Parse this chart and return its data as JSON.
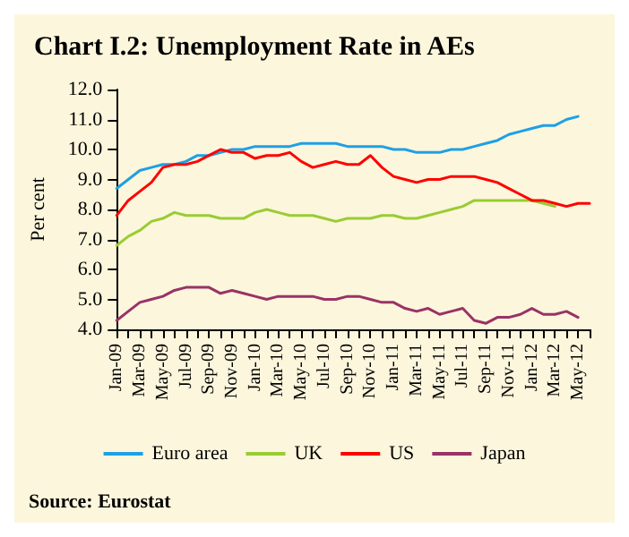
{
  "chart_data": {
    "type": "line",
    "title": "Chart I.2: Unemployment Rate in AEs",
    "ylabel": "Per cent",
    "categories": [
      "Jan-09",
      null,
      "Mar-09",
      null,
      "May-09",
      null,
      "Jul-09",
      null,
      "Sep-09",
      null,
      "Nov-09",
      null,
      "Jan-10",
      null,
      "Mar-10",
      null,
      "May-10",
      null,
      "Jul-10",
      null,
      "Sep-10",
      null,
      "Nov-10",
      null,
      "Jan-11",
      null,
      "Mar-11",
      null,
      "May-11",
      null,
      "Jul-11",
      null,
      "Sep-11",
      null,
      "Nov-11",
      null,
      "Jan-12",
      null,
      "Mar-12",
      null,
      "May-12",
      null
    ],
    "series": [
      {
        "name": "Euro area",
        "color": "#1ea0e6",
        "values": [
          8.7,
          9.0,
          9.3,
          9.4,
          9.5,
          9.5,
          9.6,
          9.8,
          9.8,
          9.9,
          10.0,
          10.0,
          10.1,
          10.1,
          10.1,
          10.1,
          10.2,
          10.2,
          10.2,
          10.2,
          10.1,
          10.1,
          10.1,
          10.1,
          10.0,
          10.0,
          9.9,
          9.9,
          9.9,
          10.0,
          10.0,
          10.1,
          10.2,
          10.3,
          10.5,
          10.6,
          10.7,
          10.8,
          10.8,
          11.0,
          11.1,
          null
        ]
      },
      {
        "name": "UK",
        "color": "#99cc33",
        "values": [
          6.8,
          7.1,
          7.3,
          7.6,
          7.7,
          7.9,
          7.8,
          7.8,
          7.8,
          7.7,
          7.7,
          7.7,
          7.9,
          8.0,
          7.9,
          7.8,
          7.8,
          7.8,
          7.7,
          7.6,
          7.7,
          7.7,
          7.7,
          7.8,
          7.8,
          7.7,
          7.7,
          7.8,
          7.9,
          8.0,
          8.1,
          8.3,
          8.3,
          8.3,
          8.3,
          8.3,
          8.3,
          8.2,
          8.1,
          null,
          null,
          null
        ]
      },
      {
        "name": "US",
        "color": "#ff0000",
        "values": [
          7.8,
          8.3,
          8.6,
          8.9,
          9.4,
          9.5,
          9.5,
          9.6,
          9.8,
          10.0,
          9.9,
          9.9,
          9.7,
          9.8,
          9.8,
          9.9,
          9.6,
          9.4,
          9.5,
          9.6,
          9.5,
          9.5,
          9.8,
          9.4,
          9.1,
          9.0,
          8.9,
          9.0,
          9.0,
          9.1,
          9.1,
          9.1,
          9.0,
          8.9,
          8.7,
          8.5,
          8.3,
          8.3,
          8.2,
          8.1,
          8.2,
          8.2
        ]
      },
      {
        "name": "Japan",
        "color": "#993366",
        "values": [
          4.3,
          4.6,
          4.9,
          5.0,
          5.1,
          5.3,
          5.4,
          5.4,
          5.4,
          5.2,
          5.3,
          5.2,
          5.1,
          5.0,
          5.1,
          5.1,
          5.1,
          5.1,
          5.0,
          5.0,
          5.1,
          5.1,
          5.0,
          4.9,
          4.9,
          4.7,
          4.6,
          4.7,
          4.5,
          4.6,
          4.7,
          4.3,
          4.2,
          4.4,
          4.4,
          4.5,
          4.7,
          4.5,
          4.5,
          4.6,
          4.4,
          null
        ]
      }
    ],
    "ylim": [
      4.0,
      12.0
    ],
    "yticks": [
      {
        "value": 4,
        "label": "4.0"
      },
      {
        "value": 5,
        "label": "5.0"
      },
      {
        "value": 6,
        "label": "6.0"
      },
      {
        "value": 7,
        "label": "7.0"
      },
      {
        "value": 8,
        "label": "8.0"
      },
      {
        "value": 9,
        "label": "9.0"
      },
      {
        "value": 10,
        "label": "10.0"
      },
      {
        "value": 11,
        "label": "11.0"
      },
      {
        "value": 12,
        "label": "12.0"
      }
    ],
    "grid": false,
    "legend": "bottom",
    "marker": "none",
    "line_style": "solid",
    "annotations": [
      "Source: Eurostat"
    ]
  }
}
